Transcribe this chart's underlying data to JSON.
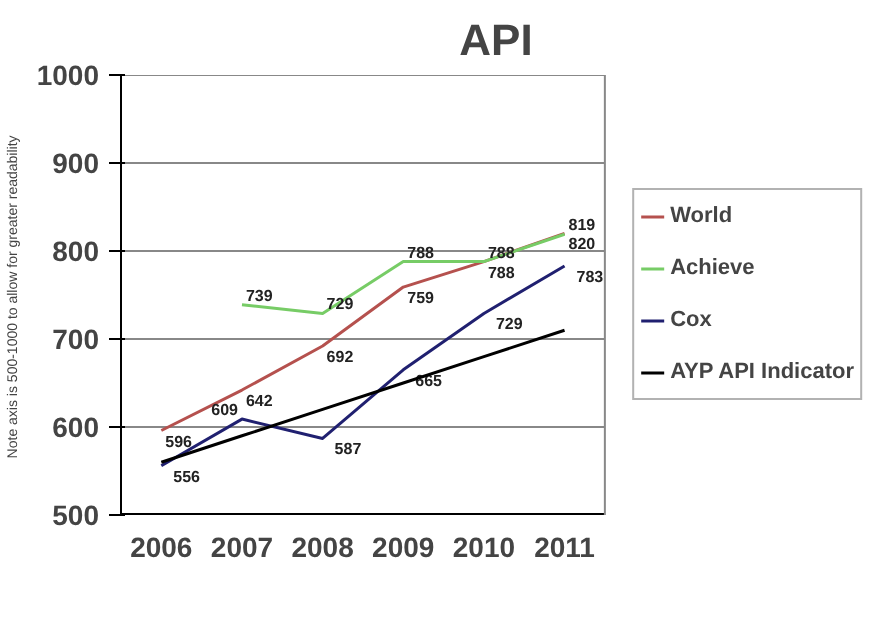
{
  "chart_data": {
    "type": "line",
    "title": "API",
    "ylabel": "Note axis is 500-1000  to allow for greater readability",
    "categories": [
      "2006",
      "2007",
      "2008",
      "2009",
      "2010",
      "2011"
    ],
    "series": [
      {
        "name": "World",
        "color": "#b5514e",
        "values": [
          596,
          642,
          692,
          759,
          788,
          820
        ],
        "value_labels": [
          "596",
          "642",
          "692",
          "759",
          "788",
          "820"
        ]
      },
      {
        "name": "Achieve",
        "color": "#77cc66",
        "values": [
          null,
          739,
          729,
          788,
          788,
          819
        ],
        "value_labels": [
          null,
          "739",
          "729",
          "788",
          "788",
          "819"
        ]
      },
      {
        "name": "Cox",
        "color": "#202070",
        "values": [
          556,
          609,
          587,
          665,
          729,
          783
        ],
        "value_labels": [
          "556",
          "609",
          "587",
          "665",
          "729",
          "783"
        ]
      },
      {
        "name": "AYP API Indicator",
        "color": "#000000",
        "values": [
          560,
          590,
          620,
          650,
          680,
          710
        ]
      }
    ],
    "ylim": [
      500,
      1000
    ],
    "yticks": [
      500,
      600,
      700,
      800,
      900,
      1000
    ],
    "grid": "y",
    "legend": "right",
    "marker": "none",
    "line_style": "solid"
  }
}
